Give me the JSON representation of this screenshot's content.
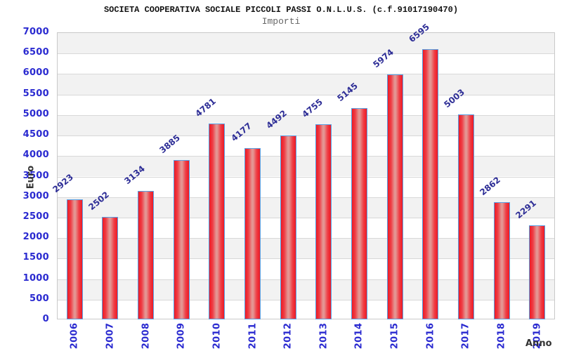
{
  "chart_data": {
    "type": "bar",
    "title": "SOCIETA COOPERATIVA SOCIALE PICCOLI PASSI O.N.L.U.S. (c.f.91017190470)",
    "subtitle": "Importi",
    "xlabel": "Anno",
    "ylabel": "Euro",
    "categories": [
      "2006",
      "2007",
      "2008",
      "2009",
      "2010",
      "2011",
      "2012",
      "2013",
      "2014",
      "2015",
      "2016",
      "2017",
      "2018",
      "2019"
    ],
    "values": [
      2923,
      2502,
      3134,
      3885,
      4781,
      4177,
      4492,
      4755,
      5145,
      5974,
      6595,
      5003,
      2862,
      2291
    ],
    "ylim": [
      0,
      7000
    ],
    "ytick_step": 500,
    "legend_position": "none",
    "grid": "horizontal gridlines with alternating gray/white bands",
    "colors": {
      "bar_edge": "#ee1a24",
      "bar_core": "#e49693",
      "bar_border": "#57a0e4",
      "axis_tick_labels": "#2a2ad0",
      "value_labels": "#2d2d96",
      "band_gray": "#f2f2f2",
      "gridline": "#d8d8d8",
      "plot_border": "#c9c9c9",
      "axis_titles": "#333333",
      "subtitle_text": "#666666",
      "title_text": "#111111"
    }
  }
}
